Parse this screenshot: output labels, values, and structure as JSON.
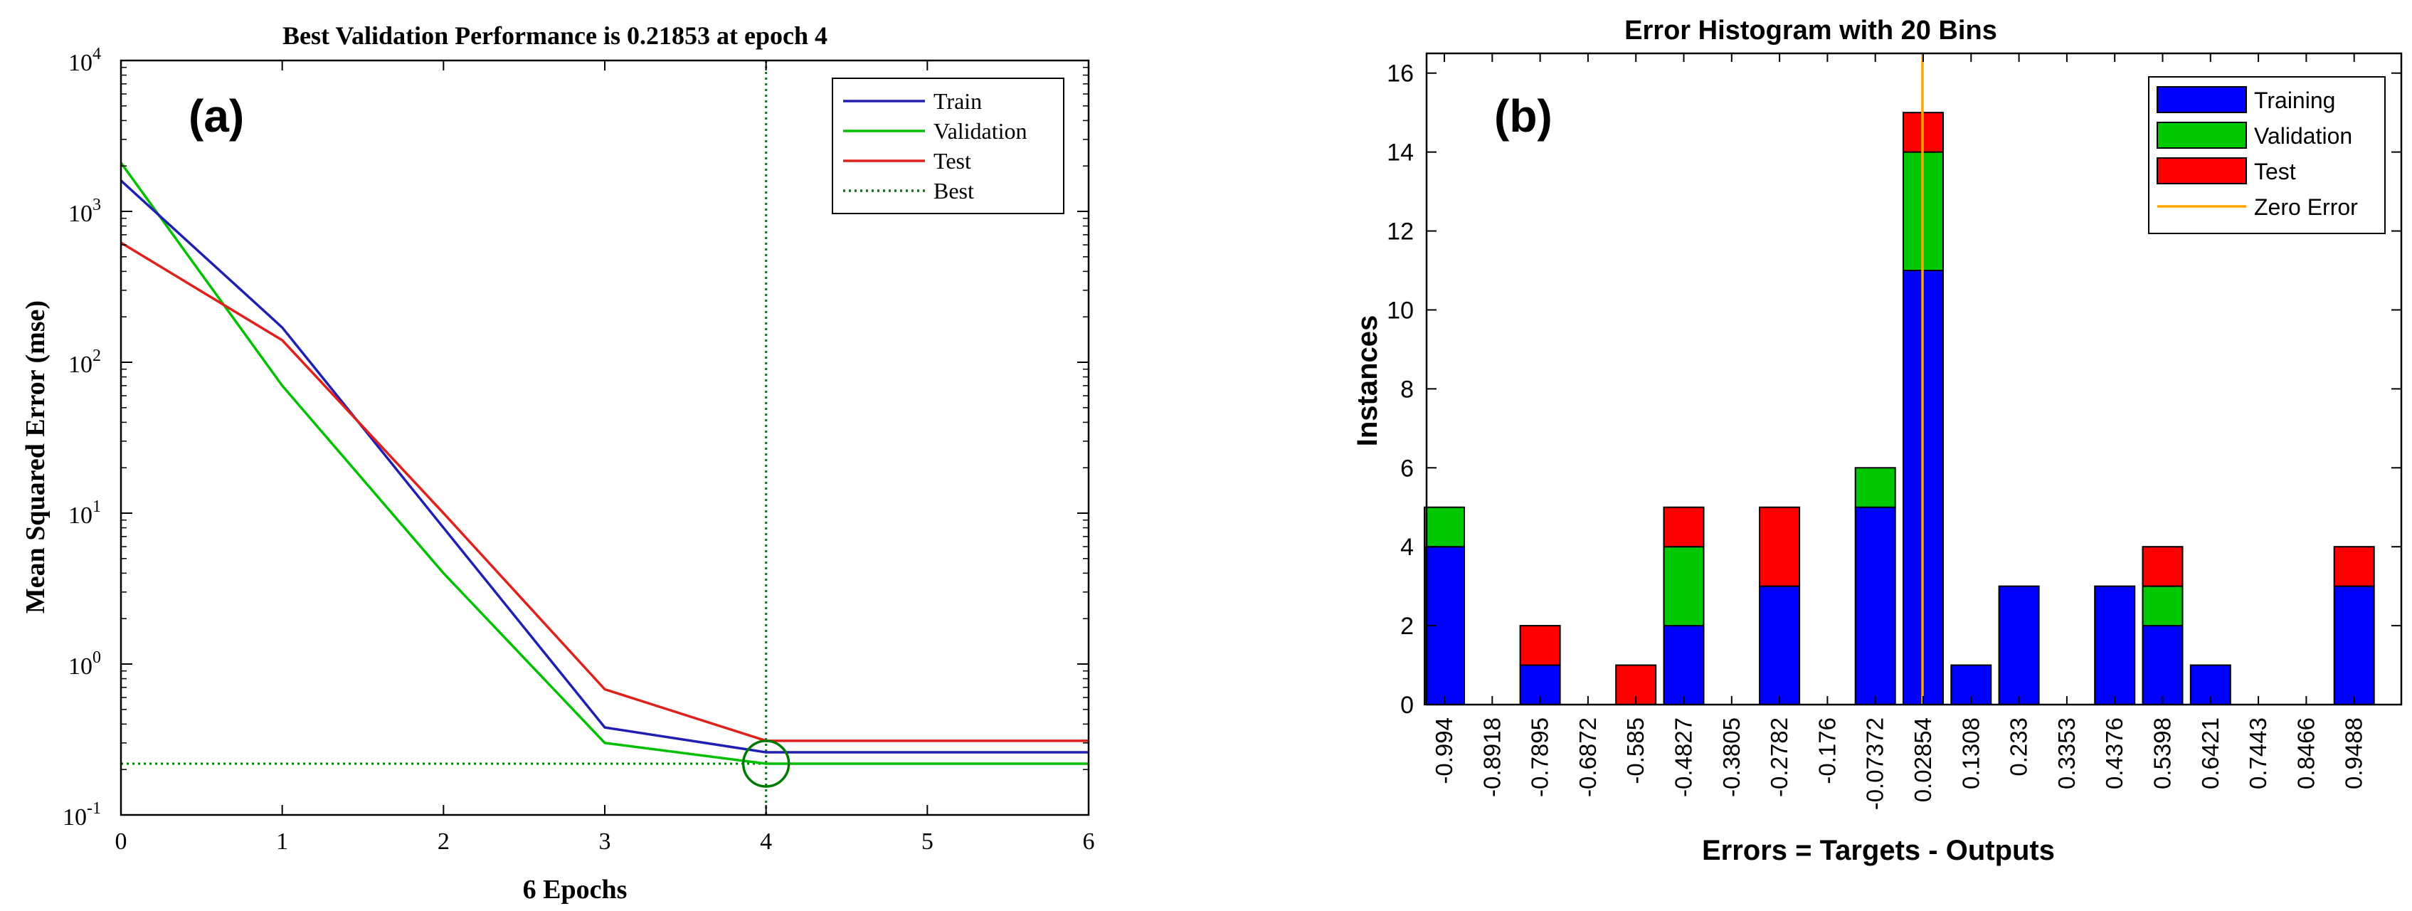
{
  "chart_data": [
    {
      "type": "line",
      "panel_label": "(a)",
      "title": "Best Validation Performance is 0.21853 at epoch 4",
      "xlabel": "6 Epochs",
      "ylabel": "Mean Squared Error  (mse)",
      "xlim": [
        0,
        6
      ],
      "ylim": [
        0.1,
        10000
      ],
      "yscale": "log",
      "x_ticks": [
        "0",
        "1",
        "2",
        "3",
        "4",
        "5",
        "6"
      ],
      "y_ticks": [
        {
          "base": "10",
          "exp": "-1"
        },
        {
          "base": "10",
          "exp": "0"
        },
        {
          "base": "10",
          "exp": "1"
        },
        {
          "base": "10",
          "exp": "2"
        },
        {
          "base": "10",
          "exp": "3"
        },
        {
          "base": "10",
          "exp": "4"
        }
      ],
      "legend_position": "top-right",
      "x": [
        0,
        1,
        2,
        3,
        4,
        5,
        6
      ],
      "series": [
        {
          "name": "Train",
          "color": "#1f1fb4",
          "values": [
            1600,
            170,
            8,
            0.38,
            0.26,
            0.26,
            0.26
          ]
        },
        {
          "name": "Validation",
          "color": "#00c000",
          "values": [
            2100,
            70,
            4,
            0.3,
            0.21853,
            0.21853,
            0.21853
          ]
        },
        {
          "name": "Test",
          "color": "#e0201a",
          "values": [
            620,
            140,
            10,
            0.68,
            0.31,
            0.31,
            0.31
          ]
        }
      ],
      "best": {
        "name": "Best",
        "color": "#007a00",
        "epoch": 4,
        "value": 0.21853
      }
    },
    {
      "type": "bar",
      "stacked": true,
      "panel_label": "(b)",
      "title": "Error Histogram with 20 Bins",
      "xlabel": "Errors = Targets - Outputs",
      "ylabel": "Instances",
      "ylim": [
        0,
        16.5
      ],
      "y_ticks": [
        "0",
        "2",
        "4",
        "6",
        "8",
        "10",
        "12",
        "14",
        "16"
      ],
      "legend_position": "top-right",
      "categories": [
        "-0.994",
        "-0.8918",
        "-0.7895",
        "-0.6872",
        "-0.585",
        "-0.4827",
        "-0.3805",
        "-0.2782",
        "-0.176",
        "-0.07372",
        "0.02854",
        "0.1308",
        "0.233",
        "0.3353",
        "0.4376",
        "0.5398",
        "0.6421",
        "0.7443",
        "0.8466",
        "0.9488"
      ],
      "series": [
        {
          "name": "Training",
          "color": "#0000ff",
          "values": [
            4,
            0,
            1,
            0,
            0,
            2,
            0,
            3,
            0,
            5,
            11,
            1,
            3,
            0,
            3,
            2,
            1,
            0,
            0,
            3
          ]
        },
        {
          "name": "Validation",
          "color": "#00c800",
          "values": [
            1,
            0,
            0,
            0,
            0,
            2,
            0,
            0,
            0,
            1,
            3,
            0,
            0,
            0,
            0,
            1,
            0,
            0,
            0,
            0
          ]
        },
        {
          "name": "Test",
          "color": "#ff0000",
          "values": [
            0,
            0,
            1,
            0,
            1,
            1,
            0,
            2,
            0,
            0,
            1,
            0,
            0,
            0,
            0,
            1,
            0,
            0,
            0,
            1
          ]
        }
      ],
      "zero_error": {
        "name": "Zero Error",
        "color": "#ffa500",
        "x": 0
      }
    }
  ]
}
